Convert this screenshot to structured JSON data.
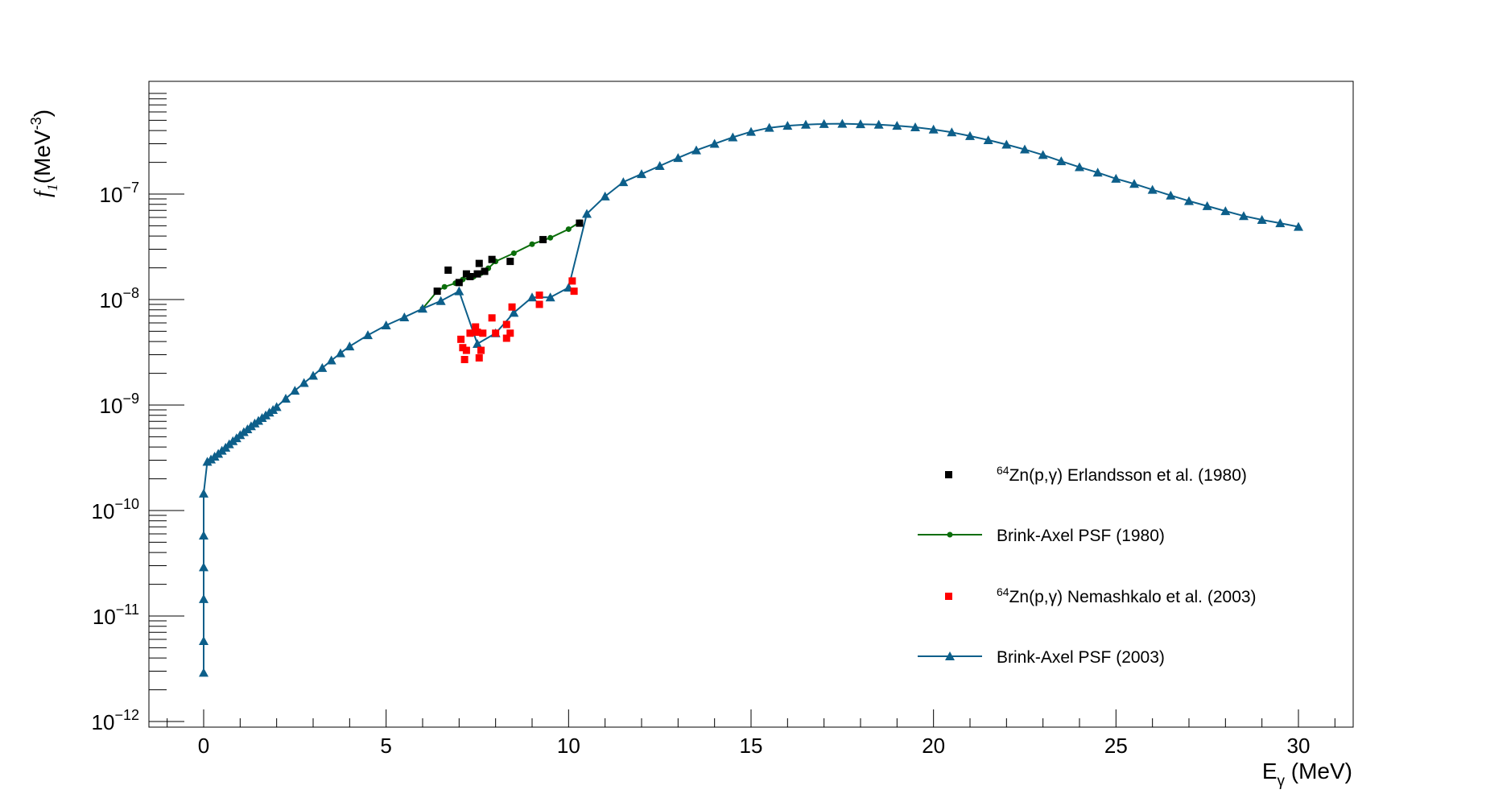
{
  "chart_data": {
    "type": "scatter",
    "title": "",
    "xlabel": "E",
    "xlabel_sub": "γ",
    "xlabel_unit": " (MeV)",
    "ylabel": "f",
    "ylabel_sub": "1",
    "ylabel_unit": "(MeV",
    "ylabel_sup": "-3",
    "ylabel_close": ")",
    "xlim": [
      -1.5,
      31.5
    ],
    "ylim": [
      1e-12,
      1e-06
    ],
    "yscale": "log",
    "grid": false,
    "legend_position": "bottom-right",
    "x_ticks": [
      0,
      5,
      10,
      15,
      20,
      25,
      30
    ],
    "x_tick_labels": [
      "0",
      "5",
      "10",
      "15",
      "20",
      "25",
      "30"
    ],
    "y_ticks": [
      {
        "value": 1e-12,
        "base": "10",
        "exp": "−12"
      },
      {
        "value": 1e-11,
        "base": "10",
        "exp": "−11"
      },
      {
        "value": 1e-10,
        "base": "10",
        "exp": "−10"
      },
      {
        "value": 1e-09,
        "base": "10",
        "exp": "−9"
      },
      {
        "value": 1e-08,
        "base": "10",
        "exp": "−8"
      },
      {
        "value": 1e-07,
        "base": "10",
        "exp": "−7"
      }
    ],
    "series": [
      {
        "name": "Erlandsson",
        "legend_sup": "64",
        "legend": "Zn(p,γ) Erlandsson et al. (1980)",
        "kind": "points",
        "marker": "square",
        "color": "#000000",
        "x": [
          6.4,
          6.7,
          7.0,
          7.2,
          7.3,
          7.5,
          7.55,
          7.7,
          7.9,
          8.4,
          9.3,
          10.3
        ],
        "y": [
          1.2e-08,
          1.9e-08,
          1.45e-08,
          1.75e-08,
          1.65e-08,
          1.75e-08,
          2.2e-08,
          1.85e-08,
          2.4e-08,
          2.3e-08,
          3.7e-08,
          5.3e-08
        ]
      },
      {
        "name": "BA1980",
        "legend": "Brink-Axel PSF (1980)",
        "kind": "line",
        "marker": "circle",
        "color": "#0b6e0b",
        "x": [
          6.0,
          6.4,
          6.6,
          6.9,
          7.1,
          7.4,
          7.6,
          7.8,
          8.0,
          8.5,
          9.0,
          9.5,
          10.0,
          10.3
        ],
        "y": [
          8.2e-09,
          1.2e-08,
          1.32e-08,
          1.43e-08,
          1.55e-08,
          1.65e-08,
          1.78e-08,
          1.98e-08,
          2.3e-08,
          2.75e-08,
          3.35e-08,
          3.85e-08,
          4.65e-08,
          5.4e-08
        ]
      },
      {
        "name": "Nemashkalo",
        "legend_sup": "64",
        "legend": "Zn(p,γ) Nemashkalo et al. (2003)",
        "kind": "points",
        "marker": "square",
        "color": "#ff0000",
        "x": [
          7.05,
          7.1,
          7.15,
          7.2,
          7.3,
          7.45,
          7.5,
          7.55,
          7.6,
          7.65,
          7.9,
          8.0,
          8.3,
          8.3,
          8.4,
          8.45,
          9.2,
          9.2,
          10.1,
          10.15
        ],
        "y": [
          4.2e-09,
          3.5e-09,
          2.7e-09,
          3.3e-09,
          4.8e-09,
          5.5e-09,
          4.9e-09,
          2.8e-09,
          3.3e-09,
          4.8e-09,
          6.7e-09,
          4.8e-09,
          4.3e-09,
          5.8e-09,
          4.8e-09,
          8.5e-09,
          1.1e-08,
          9e-09,
          1.5e-08,
          1.2e-08
        ]
      },
      {
        "name": "BA2003",
        "legend": "Brink-Axel PSF (2003)",
        "kind": "line",
        "marker": "triangle",
        "color": "#0d5f8a",
        "x": [
          0,
          0,
          0,
          0,
          0,
          0,
          0.1,
          0.2,
          0.3,
          0.4,
          0.5,
          0.6,
          0.7,
          0.8,
          0.9,
          1.0,
          1.1,
          1.2,
          1.3,
          1.4,
          1.5,
          1.6,
          1.7,
          1.8,
          1.9,
          2.0,
          2.25,
          2.5,
          2.75,
          3.0,
          3.25,
          3.5,
          3.75,
          4.0,
          4.5,
          5.0,
          5.5,
          6.0,
          6.5,
          7.0,
          7.5,
          8.0,
          8.5,
          9.0,
          9.5,
          10.0,
          10.5,
          11.0,
          11.5,
          12.0,
          12.5,
          13.0,
          13.5,
          14.0,
          14.5,
          15.0,
          15.5,
          16.0,
          16.5,
          17.0,
          17.5,
          18.0,
          18.5,
          19.0,
          19.5,
          20.0,
          20.5,
          21.0,
          21.5,
          22.0,
          22.5,
          23.0,
          23.5,
          24.0,
          24.5,
          25.0,
          25.5,
          26.0,
          26.5,
          27.0,
          27.5,
          28.0,
          28.5,
          29.0,
          29.5,
          30.0
        ],
        "y": [
          2.9e-12,
          5.8e-12,
          1.45e-11,
          2.9e-11,
          5.8e-11,
          1.45e-10,
          2.9e-10,
          3.05e-10,
          3.25e-10,
          3.45e-10,
          3.7e-10,
          3.95e-10,
          4.25e-10,
          4.55e-10,
          4.85e-10,
          5.2e-10,
          5.55e-10,
          5.9e-10,
          6.3e-10,
          6.7e-10,
          7.1e-10,
          7.55e-10,
          8e-10,
          8.5e-10,
          9e-10,
          9.6e-10,
          1.15e-09,
          1.37e-09,
          1.62e-09,
          1.9e-09,
          2.25e-09,
          2.65e-09,
          3.1e-09,
          3.6e-09,
          4.6e-09,
          5.7e-09,
          6.8e-09,
          8.2e-09,
          9.7e-09,
          1.2e-08,
          3.8e-09,
          4.8e-09,
          7.5e-09,
          1.05e-08,
          1.05e-08,
          1.3e-08,
          6.5e-08,
          9.5e-08,
          1.3e-07,
          1.55e-07,
          1.85e-07,
          2.2e-07,
          2.6e-07,
          3e-07,
          3.45e-07,
          3.9e-07,
          4.25e-07,
          4.45e-07,
          4.55e-07,
          4.62e-07,
          4.65e-07,
          4.6e-07,
          4.55e-07,
          4.45e-07,
          4.3e-07,
          4.1e-07,
          3.85e-07,
          3.55e-07,
          3.25e-07,
          2.95e-07,
          2.65e-07,
          2.35e-07,
          2.05e-07,
          1.8e-07,
          1.6e-07,
          1.4e-07,
          1.25e-07,
          1.1e-07,
          9.7e-08,
          8.6e-08,
          7.7e-08,
          6.9e-08,
          6.2e-08,
          5.7e-08,
          5.3e-08,
          4.9e-08
        ]
      }
    ]
  }
}
